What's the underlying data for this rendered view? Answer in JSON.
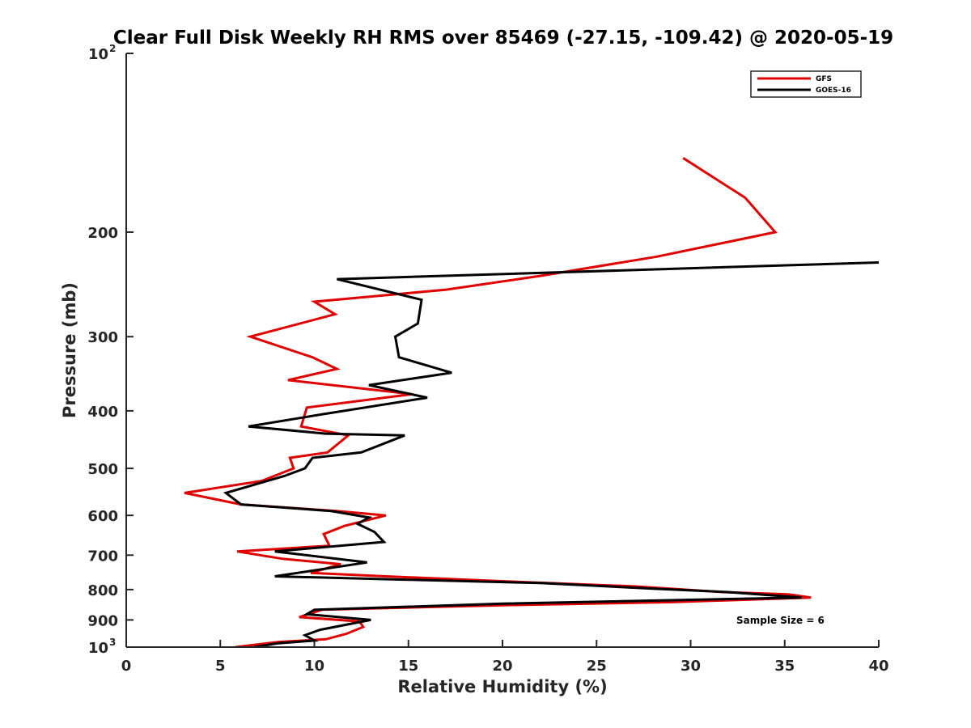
{
  "chart_data": {
    "type": "line",
    "title": "Clear Full Disk Weekly RH RMS over 85469 (-27.15, -109.42) @ 2020-05-19",
    "xlabel": "Relative Humidity (%)",
    "ylabel": "Pressure (mb)",
    "xlim": [
      0,
      40
    ],
    "ylim": [
      100,
      1000
    ],
    "yscale": "log",
    "y_reversed": true,
    "x_ticks": [
      "0",
      "5",
      "10",
      "15",
      "20",
      "25",
      "30",
      "35",
      "40"
    ],
    "y_ticks": [
      {
        "value": 200,
        "label": "200"
      },
      {
        "value": 300,
        "label": "300"
      },
      {
        "value": 400,
        "label": "400"
      },
      {
        "value": 500,
        "label": "500"
      },
      {
        "value": 600,
        "label": "600"
      },
      {
        "value": 700,
        "label": "700"
      },
      {
        "value": 800,
        "label": "800"
      },
      {
        "value": 900,
        "label": "900"
      }
    ],
    "y_tick_power_top": {
      "base": "10",
      "exp": "2",
      "value": 100
    },
    "y_tick_power_bottom": {
      "base": "10",
      "exp": "3",
      "value": 1000
    },
    "grid": false,
    "legend_position": "top-right",
    "annotation": "Sample Size = 6",
    "series": [
      {
        "name": "GFS",
        "color": "#e00000",
        "points": [
          [
            29.6,
            150
          ],
          [
            32.9,
            175
          ],
          [
            34.5,
            200
          ],
          [
            28.2,
            220
          ],
          [
            22.0,
            237
          ],
          [
            17.0,
            250
          ],
          [
            10.0,
            262
          ],
          [
            11.1,
            275
          ],
          [
            6.6,
            300
          ],
          [
            9.9,
            325
          ],
          [
            11.2,
            340
          ],
          [
            8.6,
            355
          ],
          [
            15.2,
            375
          ],
          [
            9.6,
            395
          ],
          [
            9.3,
            425
          ],
          [
            11.8,
            440
          ],
          [
            10.7,
            470
          ],
          [
            8.7,
            480
          ],
          [
            8.9,
            500
          ],
          [
            7.2,
            525
          ],
          [
            3.1,
            550
          ],
          [
            6.1,
            575
          ],
          [
            11.2,
            590
          ],
          [
            13.8,
            600
          ],
          [
            11.6,
            625
          ],
          [
            10.5,
            645
          ],
          [
            10.8,
            675
          ],
          [
            5.9,
            690
          ],
          [
            8.3,
            710
          ],
          [
            11.4,
            725
          ],
          [
            9.8,
            750
          ],
          [
            13.8,
            760
          ],
          [
            20.2,
            775
          ],
          [
            27.0,
            790
          ],
          [
            31.7,
            808
          ],
          [
            35.2,
            815
          ],
          [
            36.4,
            825
          ],
          [
            29.0,
            840
          ],
          [
            20.0,
            850
          ],
          [
            10.4,
            865
          ],
          [
            9.2,
            890
          ],
          [
            12.4,
            905
          ],
          [
            12.6,
            925
          ],
          [
            11.7,
            950
          ],
          [
            10.6,
            970
          ],
          [
            8.1,
            980
          ],
          [
            5.8,
            1000
          ]
        ]
      },
      {
        "name": "GOES-16",
        "color": "#000000",
        "points": [
          [
            40.0,
            225
          ],
          [
            11.2,
            240
          ],
          [
            15.7,
            260
          ],
          [
            15.5,
            285
          ],
          [
            14.3,
            300
          ],
          [
            14.5,
            325
          ],
          [
            17.3,
            345
          ],
          [
            12.9,
            362
          ],
          [
            16.0,
            380
          ],
          [
            10.5,
            405
          ],
          [
            6.5,
            425
          ],
          [
            10.6,
            437
          ],
          [
            14.8,
            440
          ],
          [
            12.5,
            470
          ],
          [
            9.9,
            480
          ],
          [
            9.5,
            500
          ],
          [
            8.4,
            515
          ],
          [
            5.3,
            550
          ],
          [
            6.1,
            575
          ],
          [
            10.9,
            590
          ],
          [
            12.9,
            605
          ],
          [
            12.3,
            620
          ],
          [
            13.2,
            640
          ],
          [
            13.7,
            665
          ],
          [
            7.9,
            690
          ],
          [
            12.8,
            720
          ],
          [
            7.9,
            760
          ],
          [
            15.0,
            770
          ],
          [
            22.0,
            780
          ],
          [
            28.0,
            797
          ],
          [
            32.0,
            808
          ],
          [
            35.9,
            825
          ],
          [
            20.0,
            845
          ],
          [
            10.0,
            865
          ],
          [
            9.6,
            880
          ],
          [
            13.0,
            900
          ],
          [
            10.3,
            935
          ],
          [
            9.5,
            955
          ],
          [
            10.0,
            975
          ],
          [
            8.1,
            985
          ],
          [
            6.8,
            1000
          ]
        ]
      }
    ]
  }
}
